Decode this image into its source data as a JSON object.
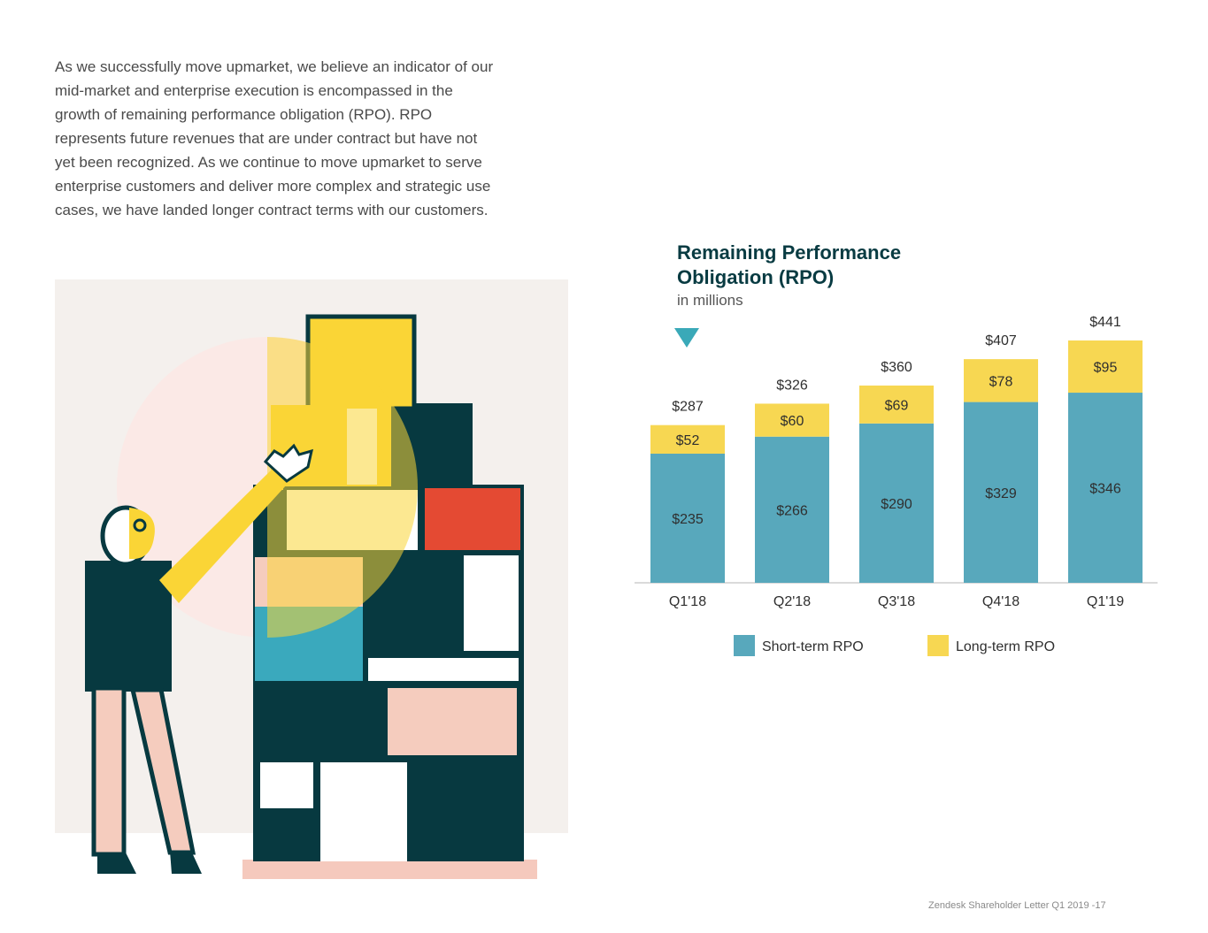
{
  "intro_text": "As we successfully move upmarket, we believe an indicator of our mid-market and enterprise execution is encompassed in the growth of remaining performance obligation (RPO). RPO represents future revenues that are under contract but have not yet been recognized. As we continue to move upmarket to serve enterprise customers and deliver more complex and strategic use cases, we have landed longer contract terms with our customers.",
  "footer": "Zendesk Shareholder Letter Q1 2019 -17",
  "colors": {
    "short_term": "#58a8bc",
    "long_term": "#f7d752",
    "title": "#083b42",
    "axis": "#b5b5b5"
  },
  "chart_data": {
    "type": "bar",
    "stacked": true,
    "title": "Remaining Performance Obligation (RPO)",
    "subtitle": "in millions",
    "categories": [
      "Q1'18",
      "Q2'18",
      "Q3'18",
      "Q4'18",
      "Q1'19"
    ],
    "series": [
      {
        "name": "Short-term RPO",
        "values": [
          235,
          266,
          290,
          329,
          346
        ],
        "labels": [
          "$235",
          "$266",
          "$290",
          "$329",
          "$346"
        ]
      },
      {
        "name": "Long-term RPO",
        "values": [
          52,
          60,
          69,
          78,
          95
        ],
        "labels": [
          "$52",
          "$60",
          "$69",
          "$78",
          "$95"
        ]
      }
    ],
    "totals": [
      287,
      326,
      360,
      407,
      441
    ],
    "total_labels": [
      "$287",
      "$326",
      "$360",
      "$407",
      "$441"
    ],
    "ylim": [
      0,
      441
    ],
    "grid": false,
    "legend": "bottom"
  }
}
